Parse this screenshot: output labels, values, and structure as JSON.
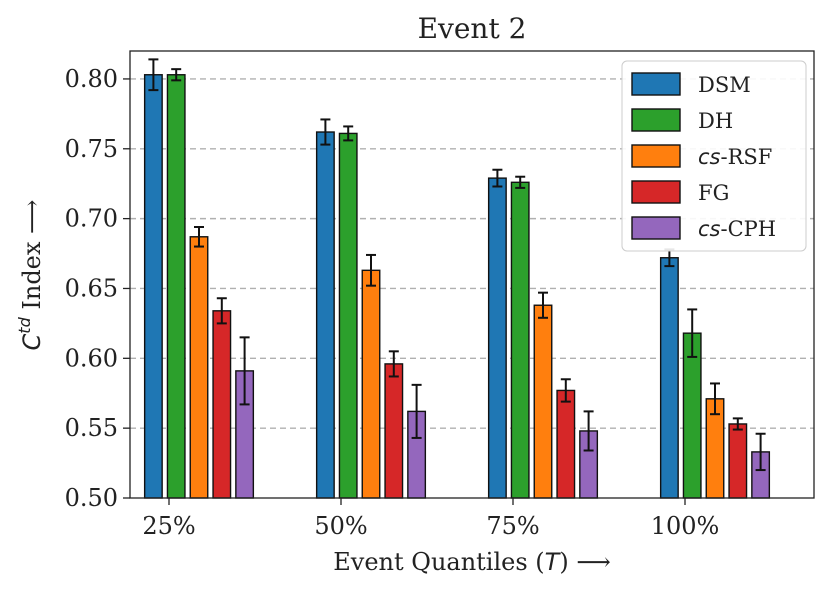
{
  "chart_data": {
    "type": "bar",
    "title": "Event 2",
    "ylabel": "C^td Index ⟶",
    "ylabel_main": "C",
    "ylabel_sup": "td",
    "ylabel_rest": " Index ⟶",
    "xlabel": "Event Quantiles (T) ⟶",
    "xlabel_pre": "Event Quantiles (",
    "xlabel_var": "T",
    "xlabel_post": ") ⟶",
    "ylim": [
      0.5,
      0.82
    ],
    "yticks": [
      0.5,
      0.55,
      0.6,
      0.65,
      0.7,
      0.75,
      0.8
    ],
    "ytick_labels": [
      "0.50",
      "0.55",
      "0.60",
      "0.65",
      "0.70",
      "0.75",
      "0.80"
    ],
    "grid": "horizontal dashed",
    "legend_position": "top-right",
    "categories": [
      "25%",
      "50%",
      "75%",
      "100%"
    ],
    "series": [
      {
        "name": "DSM",
        "name_prefix": "",
        "name_suffix": "DSM",
        "color": "#1f77b4",
        "values": [
          0.803,
          0.762,
          0.729,
          0.672
        ],
        "errors": [
          0.011,
          0.009,
          0.006,
          0.006
        ]
      },
      {
        "name": "DH",
        "name_prefix": "",
        "name_suffix": "DH",
        "color": "#2ca02c",
        "values": [
          0.803,
          0.761,
          0.726,
          0.618
        ],
        "errors": [
          0.004,
          0.005,
          0.004,
          0.017
        ]
      },
      {
        "name": "cs-RSF",
        "name_prefix": "cs",
        "name_suffix": "-RSF",
        "color": "#ff7f0e",
        "values": [
          0.687,
          0.663,
          0.638,
          0.571
        ],
        "errors": [
          0.007,
          0.011,
          0.009,
          0.011
        ]
      },
      {
        "name": "FG",
        "name_prefix": "",
        "name_suffix": "FG",
        "color": "#d62728",
        "values": [
          0.634,
          0.596,
          0.577,
          0.553
        ],
        "errors": [
          0.009,
          0.009,
          0.008,
          0.004
        ]
      },
      {
        "name": "cs-CPH",
        "name_prefix": "cs",
        "name_suffix": "-CPH",
        "color": "#9467bd",
        "values": [
          0.591,
          0.562,
          0.548,
          0.533
        ],
        "errors": [
          0.024,
          0.019,
          0.014,
          0.013
        ]
      }
    ]
  }
}
